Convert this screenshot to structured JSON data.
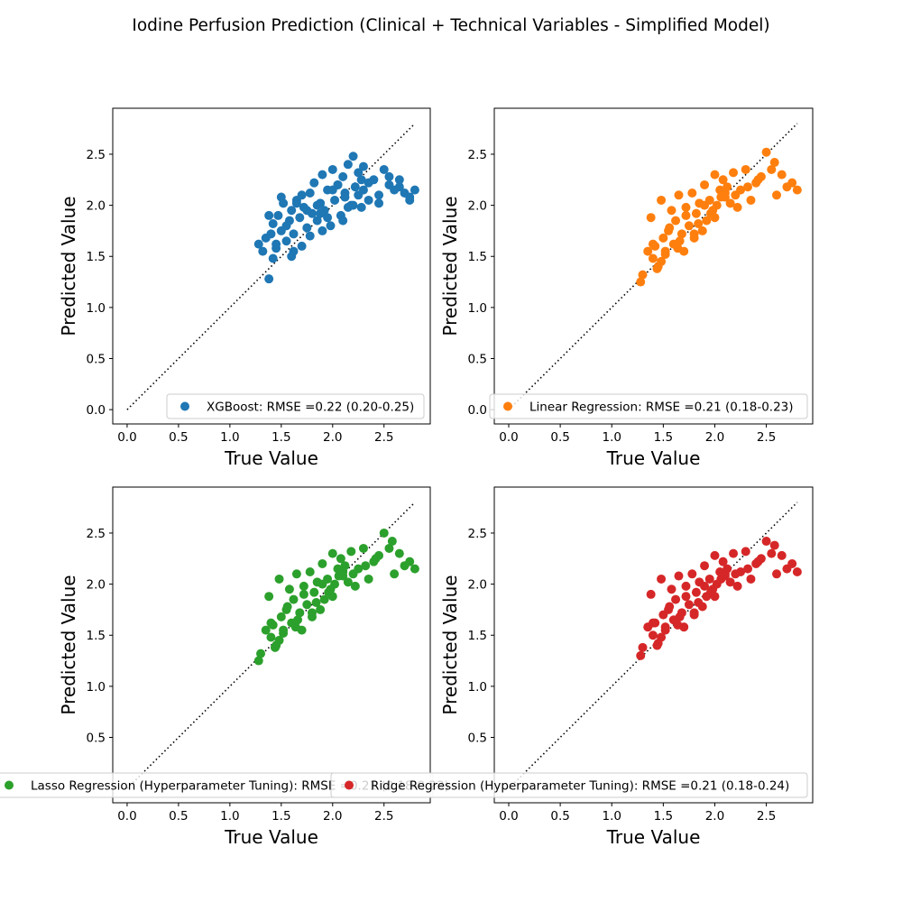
{
  "figure_title": "Iodine Perfusion Prediction (Clinical + Technical Variables - Simplified Model)",
  "chart_data": [
    {
      "type": "scatter",
      "xlabel": "True Value",
      "ylabel": "Predicted Value",
      "xlim": [
        -0.14,
        2.95
      ],
      "ylim": [
        -0.14,
        2.95
      ],
      "x_ticks": [
        "0.0",
        "0.5",
        "1.0",
        "1.5",
        "2.0",
        "2.5"
      ],
      "y_ticks": [
        "0.0",
        "0.5",
        "1.0",
        "1.5",
        "2.0",
        "2.5"
      ],
      "x_tick_values": [
        0,
        0.5,
        1,
        1.5,
        2,
        2.5
      ],
      "y_tick_values": [
        0,
        0.5,
        1,
        1.5,
        2,
        2.5
      ],
      "reference_line": {
        "from": [
          0,
          0
        ],
        "to": [
          2.8,
          2.8
        ],
        "style": "dotted",
        "color": "#000000"
      },
      "legend": {
        "label": "XGBoost: RMSE =0.22 (0.20-0.25)",
        "placement": "lower right"
      },
      "series": [
        {
          "color": "#1f77b4",
          "x": [
            1.28,
            1.32,
            1.35,
            1.38,
            1.4,
            1.42,
            1.45,
            1.47,
            1.5,
            1.52,
            1.55,
            1.58,
            1.6,
            1.62,
            1.65,
            1.68,
            1.7,
            1.72,
            1.75,
            1.78,
            1.8,
            1.82,
            1.85,
            1.88,
            1.9,
            1.92,
            1.95,
            1.98,
            2.0,
            2.02,
            2.05,
            2.08,
            2.1,
            2.12,
            2.15,
            2.18,
            2.2,
            2.22,
            2.25,
            2.28,
            2.3,
            2.35,
            2.4,
            2.45,
            2.5,
            2.55,
            2.6,
            2.65,
            2.7,
            2.75,
            2.8,
            1.38,
            1.45,
            1.55,
            1.62,
            1.7,
            1.78,
            1.85,
            1.95,
            2.05,
            2.15,
            2.25,
            2.35,
            2.45,
            2.55,
            2.65,
            2.75,
            1.5,
            1.6,
            1.75,
            1.9,
            2.0,
            2.1,
            2.2,
            2.3,
            1.42,
            1.65,
            1.88,
            2.12,
            2.28
          ],
          "y": [
            1.62,
            1.55,
            1.68,
            1.28,
            1.72,
            1.82,
            1.58,
            1.9,
            1.75,
            2.02,
            1.65,
            1.85,
            1.95,
            1.72,
            2.05,
            1.88,
            1.6,
            1.98,
            1.78,
            2.12,
            1.92,
            2.22,
            1.85,
            2.02,
            2.3,
            1.95,
            2.15,
            1.8,
            2.35,
            2.05,
            2.2,
            1.9,
            2.28,
            2.12,
            2.4,
            2.0,
            2.48,
            2.18,
            2.32,
            1.98,
            2.15,
            2.05,
            2.25,
            2.1,
            2.35,
            2.2,
            2.15,
            2.25,
            2.12,
            2.08,
            2.15,
            1.9,
            1.62,
            1.8,
            1.55,
            2.1,
            1.7,
            2.0,
            1.88,
            2.2,
            1.98,
            2.1,
            2.22,
            2.02,
            2.28,
            2.18,
            2.05,
            2.08,
            1.5,
            1.95,
            1.75,
            2.15,
            1.85,
            2.0,
            2.38,
            1.48,
            2.02,
            1.92,
            2.08,
            2.25
          ]
        }
      ]
    },
    {
      "type": "scatter",
      "xlabel": "True Value",
      "ylabel": "Predicted Value",
      "xlim": [
        -0.14,
        2.95
      ],
      "ylim": [
        -0.14,
        2.95
      ],
      "x_ticks": [
        "0.0",
        "0.5",
        "1.0",
        "1.5",
        "2.0",
        "2.5"
      ],
      "y_ticks": [
        "0.0",
        "0.5",
        "1.0",
        "1.5",
        "2.0",
        "2.5"
      ],
      "x_tick_values": [
        0,
        0.5,
        1,
        1.5,
        2,
        2.5
      ],
      "y_tick_values": [
        0,
        0.5,
        1,
        1.5,
        2,
        2.5
      ],
      "reference_line": {
        "from": [
          0,
          0
        ],
        "to": [
          2.8,
          2.8
        ],
        "style": "dotted",
        "color": "#000000"
      },
      "legend": {
        "label": "Linear Regression: RMSE =0.21 (0.18-0.23)",
        "placement": "lower right"
      },
      "series": [
        {
          "color": "#ff7f0e",
          "x": [
            1.28,
            1.3,
            1.35,
            1.38,
            1.4,
            1.42,
            1.45,
            1.48,
            1.5,
            1.52,
            1.55,
            1.58,
            1.6,
            1.62,
            1.65,
            1.68,
            1.7,
            1.72,
            1.75,
            1.78,
            1.8,
            1.82,
            1.85,
            1.88,
            1.9,
            1.92,
            1.95,
            1.98,
            2.0,
            2.02,
            2.05,
            2.08,
            2.1,
            2.12,
            2.15,
            2.18,
            2.2,
            2.25,
            2.3,
            2.35,
            2.4,
            2.45,
            2.5,
            2.55,
            2.6,
            2.65,
            2.7,
            2.75,
            2.8,
            1.4,
            1.48,
            1.56,
            1.64,
            1.72,
            1.8,
            1.9,
            2.0,
            2.1,
            2.22,
            2.32,
            2.42,
            2.58,
            1.44,
            1.52,
            1.66,
            1.84,
            1.96,
            2.06
          ],
          "y": [
            1.25,
            1.32,
            1.55,
            1.88,
            1.48,
            1.6,
            1.4,
            2.05,
            1.68,
            1.52,
            1.75,
            1.95,
            1.62,
            1.85,
            2.1,
            1.72,
            1.55,
            1.98,
            1.8,
            2.12,
            1.68,
            1.92,
            2.02,
            1.75,
            2.2,
            1.85,
            2.05,
            1.95,
            2.3,
            2.0,
            2.15,
            2.25,
            2.08,
            2.18,
            2.02,
            2.32,
            2.1,
            2.15,
            2.35,
            2.05,
            2.22,
            2.28,
            2.52,
            2.35,
            2.1,
            2.3,
            2.18,
            2.22,
            2.15,
            1.62,
            1.45,
            1.78,
            1.58,
            1.9,
            1.72,
            2.0,
            1.88,
            2.12,
            1.98,
            2.18,
            2.25,
            2.42,
            1.38,
            1.55,
            1.65,
            1.82,
            1.92,
            2.08
          ]
        }
      ]
    },
    {
      "type": "scatter",
      "xlabel": "True Value",
      "ylabel": "Predicted Value",
      "xlim": [
        -0.14,
        2.95
      ],
      "ylim": [
        -0.14,
        2.95
      ],
      "x_ticks": [
        "0.0",
        "0.5",
        "1.0",
        "1.5",
        "2.0",
        "2.5"
      ],
      "y_ticks": [
        "0.5",
        "1.0",
        "1.5",
        "2.0",
        "2.5"
      ],
      "x_tick_values": [
        0,
        0.5,
        1,
        1.5,
        2,
        2.5
      ],
      "y_tick_values": [
        0.5,
        1,
        1.5,
        2,
        2.5
      ],
      "reference_line": {
        "from": [
          0,
          0
        ],
        "to": [
          2.8,
          2.8
        ],
        "style": "dotted",
        "color": "#000000"
      },
      "legend": {
        "label": "Lasso Regression (Hyperparameter Tuning): RMSE =0.21 (0.18-0.23)",
        "placement": "lower right"
      },
      "series": [
        {
          "color": "#2ca02c",
          "x": [
            1.28,
            1.3,
            1.35,
            1.38,
            1.4,
            1.42,
            1.45,
            1.48,
            1.5,
            1.52,
            1.55,
            1.58,
            1.6,
            1.62,
            1.65,
            1.68,
            1.7,
            1.72,
            1.75,
            1.78,
            1.8,
            1.82,
            1.85,
            1.88,
            1.9,
            1.92,
            1.95,
            1.98,
            2.0,
            2.02,
            2.05,
            2.08,
            2.1,
            2.12,
            2.15,
            2.18,
            2.2,
            2.25,
            2.3,
            2.35,
            2.4,
            2.45,
            2.5,
            2.55,
            2.6,
            2.65,
            2.7,
            2.75,
            2.8,
            1.4,
            1.48,
            1.56,
            1.64,
            1.72,
            1.8,
            1.9,
            2.0,
            2.1,
            2.22,
            2.32,
            2.42,
            2.58,
            1.44,
            1.52,
            1.66,
            1.84,
            1.96,
            2.06
          ],
          "y": [
            1.25,
            1.32,
            1.55,
            1.88,
            1.48,
            1.6,
            1.4,
            2.05,
            1.68,
            1.52,
            1.75,
            1.95,
            1.62,
            1.85,
            2.1,
            1.72,
            1.55,
            1.98,
            1.8,
            2.12,
            1.68,
            1.92,
            2.02,
            1.75,
            2.2,
            1.85,
            2.05,
            1.95,
            2.3,
            2.0,
            2.15,
            2.25,
            2.08,
            2.18,
            2.02,
            2.32,
            2.1,
            2.15,
            2.35,
            2.05,
            2.22,
            2.28,
            2.5,
            2.35,
            2.1,
            2.3,
            2.18,
            2.22,
            2.15,
            1.62,
            1.45,
            1.78,
            1.58,
            1.9,
            1.72,
            2.0,
            1.88,
            2.12,
            1.98,
            2.18,
            2.25,
            2.42,
            1.38,
            1.55,
            1.65,
            1.82,
            1.92,
            2.08
          ]
        }
      ]
    },
    {
      "type": "scatter",
      "xlabel": "True Value",
      "ylabel": "Predicted Value",
      "xlim": [
        -0.14,
        2.95
      ],
      "ylim": [
        -0.14,
        2.95
      ],
      "x_ticks": [
        "0.0",
        "0.5",
        "1.0",
        "1.5",
        "2.0",
        "2.5"
      ],
      "y_ticks": [
        "0.5",
        "1.0",
        "1.5",
        "2.0",
        "2.5"
      ],
      "x_tick_values": [
        0,
        0.5,
        1,
        1.5,
        2,
        2.5
      ],
      "y_tick_values": [
        0.5,
        1,
        1.5,
        2,
        2.5
      ],
      "reference_line": {
        "from": [
          0,
          0
        ],
        "to": [
          2.8,
          2.8
        ],
        "style": "dotted",
        "color": "#000000"
      },
      "legend": {
        "label": "Ridge Regression (Hyperparameter Tuning): RMSE =0.21 (0.18-0.24)",
        "placement": "lower right"
      },
      "series": [
        {
          "color": "#d62728",
          "x": [
            1.28,
            1.3,
            1.35,
            1.38,
            1.4,
            1.42,
            1.45,
            1.48,
            1.5,
            1.52,
            1.55,
            1.58,
            1.6,
            1.62,
            1.65,
            1.68,
            1.7,
            1.72,
            1.75,
            1.78,
            1.8,
            1.82,
            1.85,
            1.88,
            1.9,
            1.92,
            1.95,
            1.98,
            2.0,
            2.02,
            2.05,
            2.08,
            2.1,
            2.12,
            2.15,
            2.18,
            2.2,
            2.25,
            2.3,
            2.35,
            2.4,
            2.45,
            2.5,
            2.55,
            2.6,
            2.65,
            2.7,
            2.75,
            2.8,
            1.4,
            1.48,
            1.56,
            1.64,
            1.72,
            1.8,
            1.9,
            2.0,
            2.1,
            2.22,
            2.32,
            2.42,
            2.58,
            1.44,
            1.52,
            1.66,
            1.84,
            1.96,
            2.06
          ],
          "y": [
            1.3,
            1.38,
            1.58,
            1.9,
            1.5,
            1.62,
            1.42,
            2.05,
            1.7,
            1.55,
            1.75,
            1.95,
            1.65,
            1.85,
            2.08,
            1.72,
            1.58,
            1.98,
            1.8,
            2.1,
            1.7,
            1.92,
            2.02,
            1.78,
            2.18,
            1.88,
            2.05,
            1.95,
            2.28,
            2.0,
            2.12,
            2.22,
            2.08,
            2.15,
            2.02,
            2.3,
            2.1,
            2.12,
            2.32,
            2.05,
            2.2,
            2.25,
            2.42,
            2.3,
            2.1,
            2.28,
            2.15,
            2.2,
            2.12,
            1.62,
            1.48,
            1.78,
            1.6,
            1.88,
            1.72,
            1.98,
            1.88,
            2.1,
            1.98,
            2.15,
            2.22,
            2.38,
            1.4,
            1.58,
            1.68,
            1.82,
            1.92,
            2.05
          ]
        }
      ]
    }
  ]
}
